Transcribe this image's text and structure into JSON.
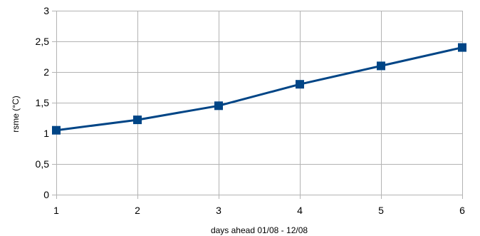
{
  "chart_data": {
    "type": "line",
    "title": "",
    "xlabel": "days ahead 01/08 - 12/08",
    "ylabel": "rsme (°C)",
    "x": [
      1,
      2,
      3,
      4,
      5,
      6
    ],
    "xticks": [
      "1",
      "2",
      "3",
      "4",
      "5",
      "6"
    ],
    "xlim": [
      1,
      6
    ],
    "ylim": [
      0,
      3
    ],
    "yticks": [
      "0",
      "0,5",
      "1",
      "1,5",
      "2",
      "2,5",
      "3"
    ],
    "ytick_values": [
      0,
      0.5,
      1,
      1.5,
      2,
      2.5,
      3
    ],
    "grid": true,
    "legend": "none",
    "series": [
      {
        "values": [
          1.05,
          1.22,
          1.45,
          1.8,
          2.1,
          2.4
        ],
        "color": "#004586",
        "marker": "square"
      }
    ],
    "colors": {
      "grid": "#b3b3b3",
      "series": "#004586"
    }
  }
}
